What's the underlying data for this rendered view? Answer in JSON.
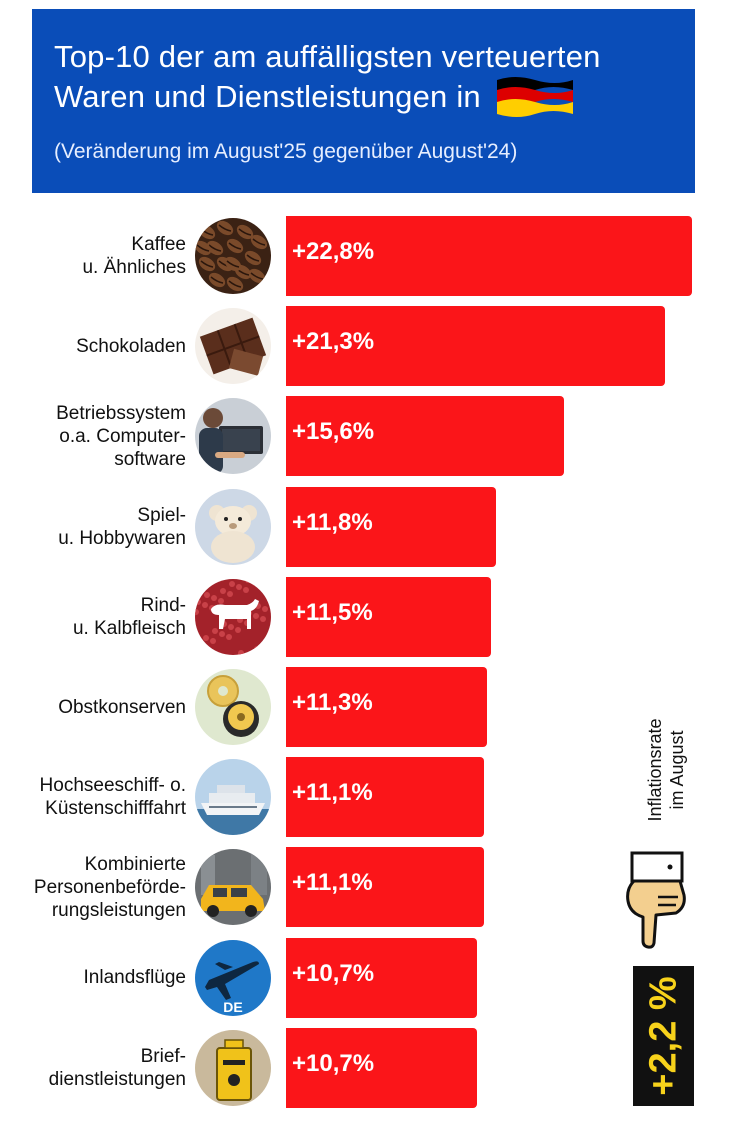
{
  "header": {
    "title_line1": "Top-10 der am auffälligsten verteuerten",
    "title_line2": "Waren und Dienstleistungen in",
    "subtitle": "(Veränderung im August'25 gegenüber August'24)",
    "flag_colors": [
      "#000000",
      "#dd0000",
      "#ffce00"
    ]
  },
  "chart_data": {
    "type": "bar",
    "orientation": "horizontal",
    "categories": [
      [
        "Kaffee",
        "u. Ähnliches"
      ],
      [
        "Schokoladen"
      ],
      [
        "Betriebssystem",
        "o.a. Computer-",
        "software"
      ],
      [
        "Spiel-",
        "u. Hobbywaren"
      ],
      [
        "Rind-",
        "u. Kalbfleisch"
      ],
      [
        "Obstkonserven"
      ],
      [
        "Hochseeschiff- o.",
        "Küstenschifffahrt"
      ],
      [
        "Kombinierte",
        "Personenbeförde-",
        "rungsleistungen"
      ],
      [
        "Inlandsflüge"
      ],
      [
        "Brief-",
        "dienstleistungen"
      ]
    ],
    "values": [
      22.8,
      21.3,
      15.6,
      11.8,
      11.5,
      11.3,
      11.1,
      11.1,
      10.7,
      10.7
    ],
    "value_labels": [
      "+22,8%",
      "+21,3%",
      "+15,6%",
      "+11,8%",
      "+11,5%",
      "+11,3%",
      "+11,1%",
      "+11,1%",
      "+10,7%",
      "+10,7%"
    ],
    "icons": [
      "coffee-beans-icon",
      "chocolate-icon",
      "laptop-user-icon",
      "teddy-bear-icon",
      "cow-icon",
      "canned-pineapple-icon",
      "cruise-ship-icon",
      "taxi-icon",
      "airplane-icon",
      "mailbox-icon"
    ],
    "icon_badge_inlandsfluege": "DE",
    "bar_color": "#fb1519",
    "xlim": [
      0,
      22.8
    ]
  },
  "inflation": {
    "label_line1": "Inflationsrate",
    "label_line2": "im August",
    "value": "+2,2 %",
    "box_color": "#111111",
    "value_color": "#f7d21b",
    "icon": "pointing-hand-icon"
  }
}
